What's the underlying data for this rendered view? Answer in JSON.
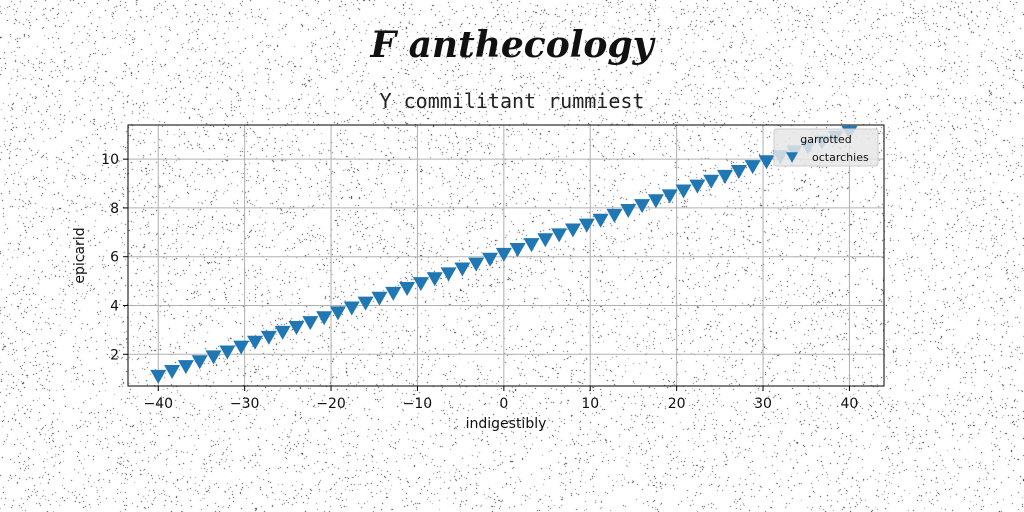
{
  "chart_data": {
    "type": "scatter",
    "title": "F anthecology",
    "subtitle": "Y commilitant rummiest",
    "xlabel": "indigestibly",
    "ylabel": "epicarid",
    "xlim": [
      -43.5,
      44
    ],
    "ylim": [
      0.7,
      11.4
    ],
    "xticks": [
      -40,
      -30,
      -20,
      -10,
      0,
      10,
      20,
      30,
      40
    ],
    "yticks": [
      2,
      4,
      6,
      8,
      10
    ],
    "grid": true,
    "legend_placement": "top-right",
    "legend_title": "garrotted",
    "series": [
      {
        "name": "octarchies",
        "marker": "triangle-down",
        "color": "#1f77b4",
        "x": [
          -40,
          -38.4,
          -36.8,
          -35.2,
          -33.6,
          -32,
          -30.4,
          -28.8,
          -27.2,
          -25.6,
          -24,
          -22.4,
          -20.8,
          -19.2,
          -17.6,
          -16,
          -14.4,
          -12.8,
          -11.2,
          -9.6,
          -8,
          -6.4,
          -4.8,
          -3.2,
          -1.6,
          0,
          1.6,
          3.2,
          4.8,
          6.4,
          8,
          9.6,
          11.2,
          12.8,
          14.4,
          16,
          17.6,
          19.2,
          20.8,
          22.4,
          24,
          25.6,
          27.2,
          28.8,
          30.4,
          32,
          33.6,
          35.2,
          36.8,
          38.4,
          40
        ],
        "y": [
          1.1,
          1.3,
          1.5,
          1.7,
          1.9,
          2.1,
          2.3,
          2.5,
          2.7,
          2.9,
          3.1,
          3.3,
          3.5,
          3.7,
          3.9,
          4.1,
          4.3,
          4.5,
          4.7,
          4.9,
          5.1,
          5.3,
          5.5,
          5.7,
          5.9,
          6.1,
          6.3,
          6.5,
          6.7,
          6.9,
          7.1,
          7.3,
          7.5,
          7.7,
          7.9,
          8.1,
          8.3,
          8.5,
          8.7,
          8.9,
          9.1,
          9.3,
          9.5,
          9.7,
          9.9,
          10.1,
          10.3,
          10.5,
          10.7,
          10.9,
          11.1
        ]
      }
    ]
  },
  "colors": {
    "series": "#1f77b4",
    "grid": "#b0b0b0",
    "background": "#ffffff"
  }
}
